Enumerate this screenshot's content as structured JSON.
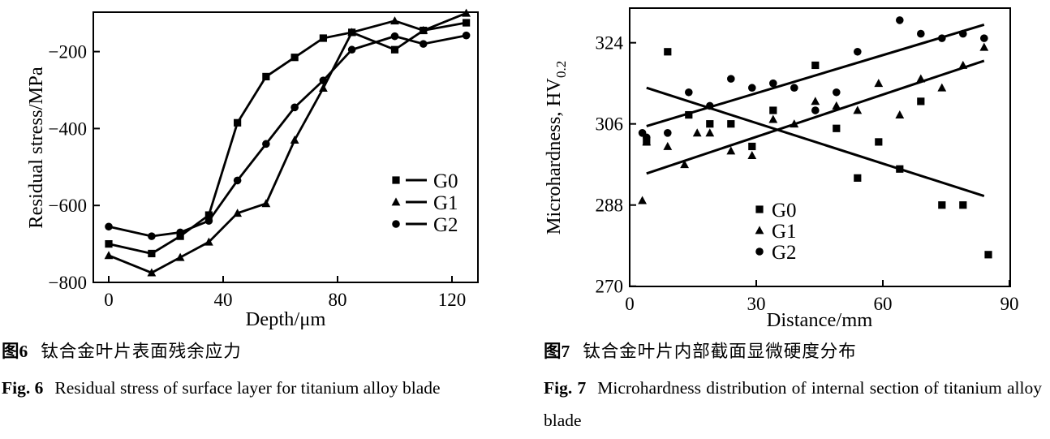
{
  "page": {
    "background": "#ffffff",
    "ink": "#000000"
  },
  "figure6": {
    "caption_cn_label": "图6",
    "caption_cn_text": "钛合金叶片表面残余应力",
    "caption_en_label": "Fig. 6",
    "caption_en_text": "Residual stress of surface layer for titanium alloy blade"
  },
  "figure7": {
    "caption_cn_label": "图7",
    "caption_cn_text": "钛合金叶片内部截面显微硬度分布",
    "caption_en_label": "Fig. 7",
    "caption_en_text": "Microhardness distribution of internal section of titanium alloy blade"
  },
  "chart_data": [
    {
      "id": "fig6",
      "type": "line",
      "title": "",
      "xlabel": "Depth/μm",
      "ylabel": "Residual stress/MPa",
      "x_ticks": [
        0,
        40,
        80,
        120
      ],
      "y_ticks": [
        -800,
        -600,
        -400,
        -200
      ],
      "xlim": [
        -5.4,
        129
      ],
      "ylim": [
        -800,
        -95
      ],
      "grid": false,
      "legend_position": "right-middle",
      "x": [
        0,
        15,
        25,
        35,
        45,
        55,
        65,
        75,
        85,
        100,
        110,
        125
      ],
      "series": [
        {
          "name": "G0",
          "marker": "square",
          "values": [
            -700,
            -725,
            -680,
            -625,
            -385,
            -265,
            -215,
            -165,
            -150,
            -195,
            -145,
            -125
          ]
        },
        {
          "name": "G1",
          "marker": "triangle",
          "values": [
            -730,
            -775,
            -735,
            -695,
            -620,
            -595,
            -430,
            -295,
            -150,
            -120,
            -145,
            -100
          ]
        },
        {
          "name": "G2",
          "marker": "circle",
          "values": [
            -655,
            -680,
            -670,
            -640,
            -535,
            -440,
            -345,
            -275,
            -195,
            -160,
            -180,
            -158
          ]
        }
      ]
    },
    {
      "id": "fig7",
      "type": "scatter",
      "title": "",
      "xlabel": "Distance/mm",
      "ylabel": "Microhardness, HV",
      "ylabel_subscript": "0.2",
      "x_ticks": [
        0,
        30,
        60,
        90
      ],
      "y_ticks": [
        270,
        288,
        306,
        324
      ],
      "xlim": [
        0,
        90.3
      ],
      "ylim": [
        270,
        332
      ],
      "grid": false,
      "legend_position": "bottom-center",
      "series": [
        {
          "name": "G0",
          "marker": "square",
          "points": [
            [
              4,
              302
            ],
            [
              9,
              322
            ],
            [
              14,
              308
            ],
            [
              19,
              306
            ],
            [
              24,
              306
            ],
            [
              29,
              301
            ],
            [
              34,
              309
            ],
            [
              44,
              319
            ],
            [
              49,
              305
            ],
            [
              54,
              294
            ],
            [
              59,
              302
            ],
            [
              64,
              296
            ],
            [
              69,
              311
            ],
            [
              74,
              288
            ],
            [
              79,
              288
            ],
            [
              85,
              277
            ]
          ]
        },
        {
          "name": "G1",
          "marker": "triangle",
          "points": [
            [
              3,
              289
            ],
            [
              4,
              302
            ],
            [
              9,
              301
            ],
            [
              13,
              297
            ],
            [
              16,
              304
            ],
            [
              19,
              304
            ],
            [
              24,
              300
            ],
            [
              29,
              299
            ],
            [
              34,
              307
            ],
            [
              39,
              306
            ],
            [
              44,
              311
            ],
            [
              49,
              310
            ],
            [
              54,
              309
            ],
            [
              59,
              315
            ],
            [
              64,
              308
            ],
            [
              69,
              316
            ],
            [
              74,
              314
            ],
            [
              79,
              319
            ],
            [
              84,
              323
            ]
          ]
        },
        {
          "name": "G2",
          "marker": "circle",
          "points": [
            [
              3,
              304
            ],
            [
              4,
              303
            ],
            [
              9,
              304
            ],
            [
              14,
              313
            ],
            [
              19,
              310
            ],
            [
              24,
              316
            ],
            [
              29,
              314
            ],
            [
              34,
              315
            ],
            [
              39,
              314
            ],
            [
              44,
              309
            ],
            [
              49,
              313
            ],
            [
              54,
              322
            ],
            [
              64,
              329
            ],
            [
              69,
              326
            ],
            [
              74,
              325
            ],
            [
              79,
              326
            ],
            [
              84,
              325
            ]
          ]
        }
      ],
      "trend_lines": [
        {
          "series": "G0",
          "from": [
            4,
            314
          ],
          "to": [
            84,
            290
          ]
        },
        {
          "series": "G1",
          "from": [
            4,
            295
          ],
          "to": [
            84,
            320
          ]
        },
        {
          "series": "G2",
          "from": [
            4,
            305.5
          ],
          "to": [
            84,
            328
          ]
        }
      ]
    }
  ]
}
